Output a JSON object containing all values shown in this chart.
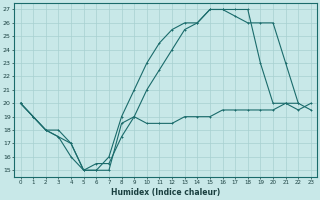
{
  "xlabel": "Humidex (Indice chaleur)",
  "ylabel": "",
  "bg_color": "#c8e8e8",
  "grid_color": "#a8d0d0",
  "line_color": "#1a6b6b",
  "xlim": [
    -0.5,
    23.5
  ],
  "ylim": [
    14.5,
    27.5
  ],
  "yticks": [
    15,
    16,
    17,
    18,
    19,
    20,
    21,
    22,
    23,
    24,
    25,
    26,
    27
  ],
  "xticks": [
    0,
    1,
    2,
    3,
    4,
    5,
    6,
    7,
    8,
    9,
    10,
    11,
    12,
    13,
    14,
    15,
    16,
    17,
    18,
    19,
    20,
    21,
    22,
    23
  ],
  "line1_x": [
    0,
    1,
    2,
    3,
    4,
    5,
    6,
    7,
    8,
    9,
    10,
    11,
    12,
    13,
    14,
    15,
    16,
    17,
    18,
    19,
    20,
    21,
    22,
    23
  ],
  "line1_y": [
    20.0,
    19.0,
    18.0,
    17.5,
    16.0,
    15.0,
    15.0,
    15.0,
    18.5,
    19.0,
    18.5,
    18.5,
    18.5,
    19.0,
    19.0,
    19.0,
    19.5,
    19.5,
    19.5,
    19.5,
    19.5,
    20.0,
    20.0,
    19.5
  ],
  "line2_x": [
    0,
    1,
    2,
    3,
    4,
    5,
    6,
    7,
    8,
    9,
    10,
    11,
    12,
    13,
    14,
    15,
    16,
    17,
    18,
    19,
    20,
    21,
    22
  ],
  "line2_y": [
    20.0,
    19.0,
    18.0,
    18.0,
    17.0,
    15.0,
    15.0,
    16.0,
    19.0,
    21.0,
    23.0,
    24.5,
    25.5,
    26.0,
    26.0,
    27.0,
    27.0,
    26.5,
    26.0,
    26.0,
    26.0,
    23.0,
    20.0
  ],
  "line3_x": [
    0,
    1,
    2,
    3,
    4,
    5,
    6,
    7,
    8,
    9,
    10,
    11,
    12,
    13,
    14,
    15,
    16,
    17,
    18,
    19,
    20,
    21,
    22,
    23
  ],
  "line3_y": [
    20.0,
    19.0,
    18.0,
    17.5,
    17.0,
    15.0,
    15.5,
    15.5,
    17.5,
    19.0,
    21.0,
    22.5,
    24.0,
    25.5,
    26.0,
    27.0,
    27.0,
    27.0,
    27.0,
    23.0,
    20.0,
    20.0,
    19.5,
    20.0
  ]
}
